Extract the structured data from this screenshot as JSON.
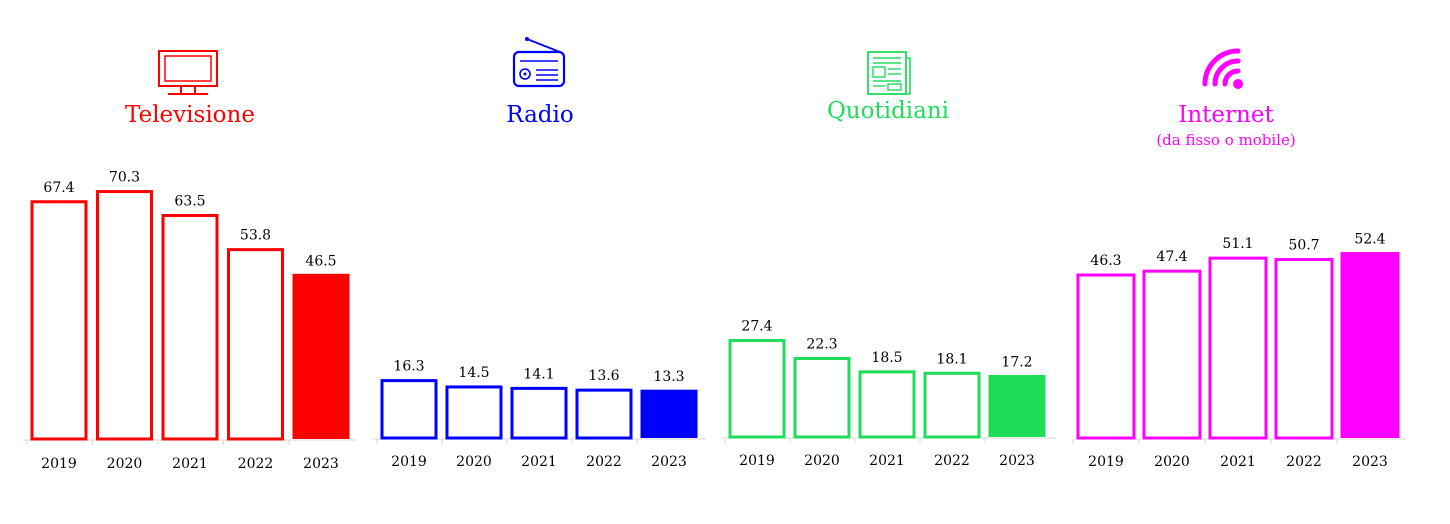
{
  "chart_data": [
    {
      "type": "bar",
      "title": "Televisione",
      "subtitle": "",
      "icon": "television-icon",
      "color": "#ff0000",
      "categories": [
        "2019",
        "2020",
        "2021",
        "2022",
        "2023"
      ],
      "values": [
        67.4,
        70.3,
        63.5,
        53.8,
        46.5
      ],
      "value_labels": [
        "67.4",
        "70.3",
        "63.5",
        "53.8",
        "46.5"
      ],
      "highlight_last_filled": true,
      "ylim": [
        0,
        100
      ]
    },
    {
      "type": "bar",
      "title": "Radio",
      "subtitle": "",
      "icon": "radio-icon",
      "color": "#0000ff",
      "categories": [
        "2019",
        "2020",
        "2021",
        "2022",
        "2023"
      ],
      "values": [
        16.3,
        14.5,
        14.1,
        13.6,
        13.3
      ],
      "value_labels": [
        "16.3",
        "14.5",
        "14.1",
        "13.6",
        "13.3"
      ],
      "highlight_last_filled": true,
      "ylim": [
        0,
        100
      ]
    },
    {
      "type": "bar",
      "title": "Quotidiani",
      "subtitle": "",
      "icon": "newspaper-icon",
      "color": "#1fdd5a",
      "categories": [
        "2019",
        "2020",
        "2021",
        "2022",
        "2023"
      ],
      "values": [
        27.4,
        22.3,
        18.5,
        18.1,
        17.2
      ],
      "value_labels": [
        "27.4",
        "22.3",
        "18.5",
        "18.1",
        "17.2"
      ],
      "highlight_last_filled": true,
      "ylim": [
        0,
        100
      ]
    },
    {
      "type": "bar",
      "title": "Internet",
      "subtitle": "(da fisso o mobile)",
      "icon": "wifi-icon",
      "color": "#ff00ff",
      "categories": [
        "2019",
        "2020",
        "2021",
        "2022",
        "2023"
      ],
      "values": [
        46.3,
        47.4,
        51.1,
        50.7,
        52.4
      ],
      "value_labels": [
        "46.3",
        "47.4",
        "51.1",
        "50.7",
        "52.4"
      ],
      "highlight_last_filled": true,
      "ylim": [
        0,
        100
      ]
    }
  ]
}
